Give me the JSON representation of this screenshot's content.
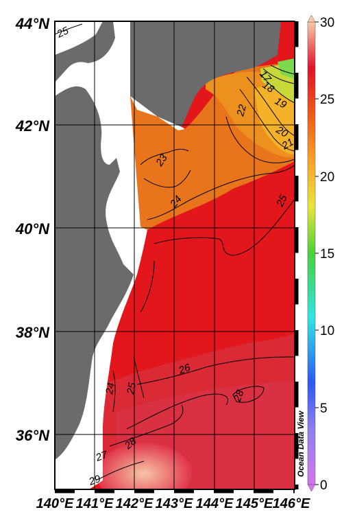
{
  "map": {
    "lat_labels": [
      "44°N",
      "42°N",
      "40°N",
      "38°N",
      "36°N"
    ],
    "lon_labels": [
      "140°E",
      "141°E",
      "142°E",
      "143°E",
      "144°E",
      "145°E",
      "146°E"
    ],
    "lon_range": [
      140,
      146
    ],
    "lat_range": [
      35,
      44
    ],
    "contour_labels": [
      "25",
      "17",
      "18",
      "19",
      "22",
      "20",
      "21",
      "23",
      "24",
      "25",
      "26",
      "24",
      "25",
      "28",
      "28",
      "27",
      "29"
    ],
    "watermark": "Ocean Data View"
  },
  "colorbar": {
    "ticks": [
      "30",
      "25",
      "20",
      "15",
      "10",
      "5",
      "0"
    ],
    "range": [
      0,
      30
    ],
    "stops": [
      "#d676ee",
      "#8e7ff5",
      "#2b58f7",
      "#2ee6e6",
      "#46d236",
      "#e9e538",
      "#fda228",
      "#f05a14",
      "#e3102a",
      "#f9cba8"
    ]
  },
  "colors": {
    "land": "#6b6b6b",
    "sst_cold_north": "#e78a1c",
    "sst_warm": "#e3161c",
    "sst_hot": "#d92c3d"
  }
}
